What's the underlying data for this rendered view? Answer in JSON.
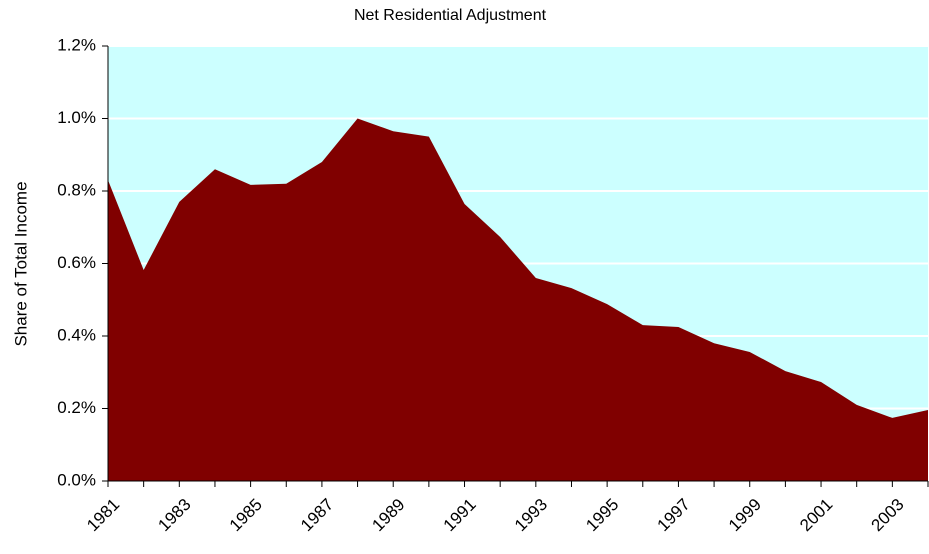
{
  "chart_data": {
    "type": "area",
    "title": "Net Residential Adjustment",
    "y_label": "Share of Total Income",
    "categories": [
      "1981",
      null,
      "1983",
      null,
      "1985",
      null,
      "1987",
      null,
      "1989",
      null,
      "1991",
      null,
      "1993",
      null,
      "1995",
      null,
      "1997",
      null,
      "1999",
      null,
      "2001",
      null,
      "2003",
      null
    ],
    "series": [
      {
        "name": "Net Residential Adjustment",
        "color": "#800000",
        "values": [
          0.83,
          0.582,
          0.77,
          0.86,
          0.817,
          0.82,
          0.88,
          1.0,
          0.965,
          0.95,
          0.764,
          0.673,
          0.56,
          0.532,
          0.488,
          0.43,
          0.425,
          0.38,
          0.356,
          0.303,
          0.273,
          0.21,
          0.174,
          0.196
        ]
      }
    ],
    "ylim": [
      0,
      1.2
    ],
    "yticks": [
      {
        "value": 0,
        "label": "0.0%"
      },
      {
        "value": 0.2,
        "label": "0.2%"
      },
      {
        "value": 0.4,
        "label": "0.4%"
      },
      {
        "value": 0.6,
        "label": "0.6%"
      },
      {
        "value": 0.8,
        "label": "0.8%"
      },
      {
        "value": 1.0,
        "label": "1.0%"
      },
      {
        "value": 1.2,
        "label": "1.2%"
      }
    ],
    "grid": true,
    "plot_background": "#ccffff"
  }
}
